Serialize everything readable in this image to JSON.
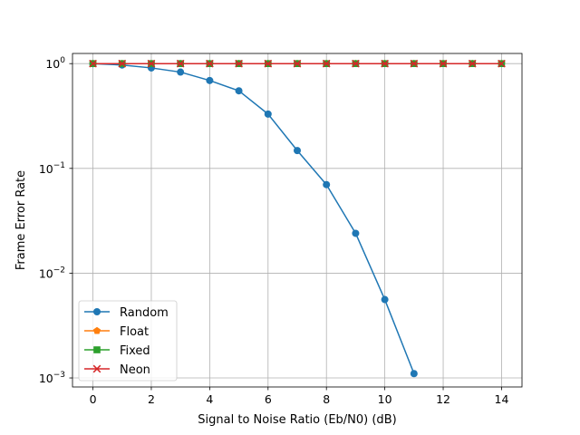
{
  "chart_data": {
    "type": "line",
    "title": "",
    "xlabel": "Signal to Noise Ratio (Eb/N0) (dB)",
    "ylabel": "Frame Error Rate",
    "x_scale": "linear",
    "y_scale": "log",
    "xlim": [
      -0.7,
      14.7
    ],
    "ylim": [
      0.00082,
      1.25
    ],
    "x_ticks": [
      0,
      2,
      4,
      6,
      8,
      10,
      12,
      14
    ],
    "x_tick_labels": [
      "0",
      "2",
      "4",
      "6",
      "8",
      "10",
      "12",
      "14"
    ],
    "y_ticks": [
      0.001,
      0.01,
      0.1,
      1
    ],
    "y_tick_labels": [
      "10",
      "10",
      "10",
      "10"
    ],
    "y_tick_exponents": [
      "−3",
      "−2",
      "−1",
      "0"
    ],
    "grid": true,
    "legend_position": "lower-left",
    "series": [
      {
        "name": "Random",
        "color": "#1f77b4",
        "marker": "circle",
        "x": [
          0,
          1,
          2,
          3,
          4,
          5,
          6,
          7,
          8,
          9,
          10,
          11
        ],
        "y": [
          1.0,
          0.97,
          0.91,
          0.83,
          0.69,
          0.55,
          0.33,
          0.148,
          0.07,
          0.024,
          0.0056,
          0.0011
        ]
      },
      {
        "name": "Float",
        "color": "#ff7f0e",
        "marker": "pentagon",
        "x": [
          0,
          1,
          2,
          3,
          4,
          5,
          6,
          7,
          8,
          9,
          10,
          11,
          12,
          13,
          14
        ],
        "y": [
          1,
          1,
          1,
          1,
          1,
          1,
          1,
          1,
          1,
          1,
          1,
          1,
          1,
          1,
          1
        ]
      },
      {
        "name": "Fixed",
        "color": "#2ca02c",
        "marker": "square",
        "x": [
          0,
          1,
          2,
          3,
          4,
          5,
          6,
          7,
          8,
          9,
          10,
          11,
          12,
          13,
          14
        ],
        "y": [
          1,
          1,
          1,
          1,
          1,
          1,
          1,
          1,
          1,
          1,
          1,
          1,
          1,
          1,
          1
        ]
      },
      {
        "name": "Neon",
        "color": "#d62728",
        "marker": "x",
        "x": [
          0,
          1,
          2,
          3,
          4,
          5,
          6,
          7,
          8,
          9,
          10,
          11,
          12,
          13,
          14
        ],
        "y": [
          1,
          1,
          1,
          1,
          1,
          1,
          1,
          1,
          1,
          1,
          1,
          1,
          1,
          1,
          1
        ]
      }
    ]
  }
}
